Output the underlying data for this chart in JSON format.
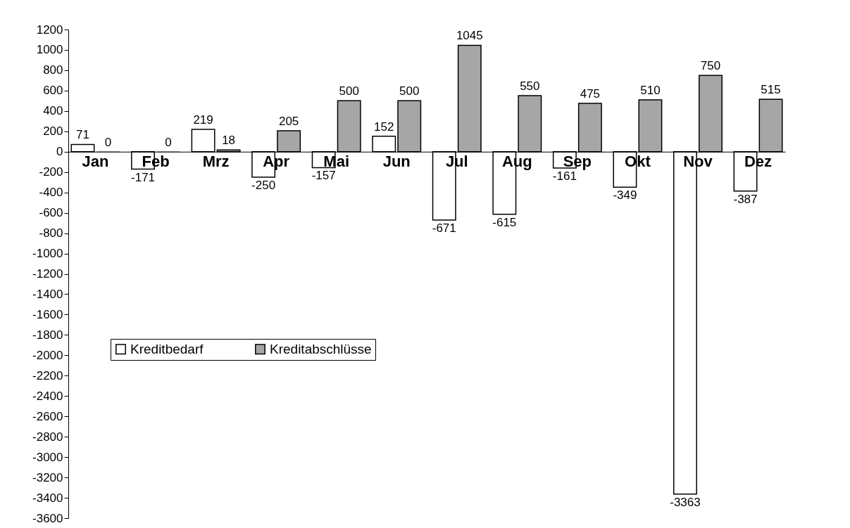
{
  "chart_data": {
    "type": "bar",
    "categories": [
      "Jan",
      "Feb",
      "Mrz",
      "Apr",
      "Mai",
      "Jun",
      "Jul",
      "Aug",
      "Sep",
      "Okt",
      "Nov",
      "Dez"
    ],
    "series": [
      {
        "name": "Kreditbedarf",
        "color": "#ffffff",
        "values": [
          71,
          -171,
          219,
          -250,
          -157,
          152,
          -671,
          -615,
          -161,
          -349,
          -3363,
          -387
        ]
      },
      {
        "name": "Kreditabschlüsse",
        "color": "#a6a6a6",
        "values": [
          0,
          0,
          18,
          205,
          500,
          500,
          1045,
          550,
          475,
          510,
          750,
          515
        ]
      }
    ],
    "ylim": [
      -3600,
      1200
    ],
    "yticks": [
      -3600,
      -3400,
      -3200,
      -3000,
      -2800,
      -2600,
      -2400,
      -2200,
      -2000,
      -1800,
      -1600,
      -1400,
      -1200,
      -1000,
      -800,
      -600,
      -400,
      -200,
      0,
      200,
      400,
      600,
      800,
      1000,
      1200
    ],
    "grid": false,
    "legend": "left",
    "data_labels": true
  }
}
